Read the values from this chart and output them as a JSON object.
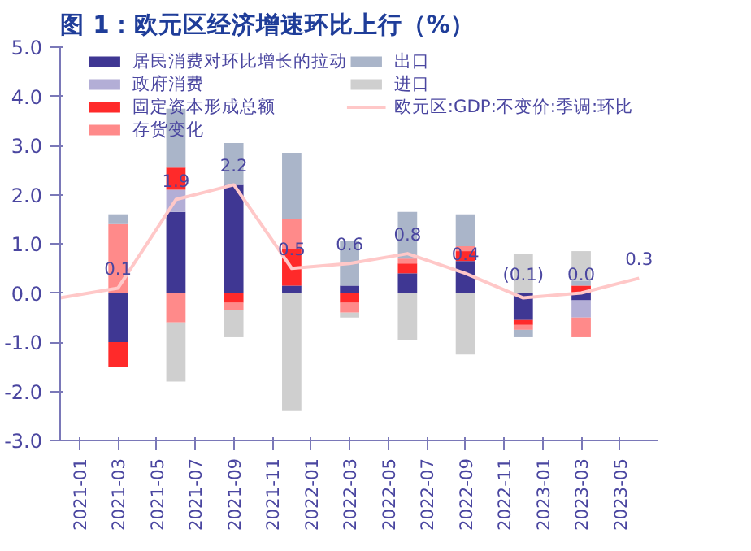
{
  "chart_data": {
    "type": "bar",
    "title": "图 1：欧元区经济增速环比上行（%）",
    "stacked": true,
    "x": [
      "2021-03",
      "2021-06",
      "2021-09",
      "2021-12",
      "2022-03",
      "2022-06",
      "2022-09",
      "2022-12",
      "2023-03"
    ],
    "series": [
      {
        "name": "居民消费对环比增长的拉动",
        "color": "#3f3793",
        "values": [
          -1.0,
          1.65,
          2.2,
          0.15,
          0.15,
          0.4,
          0.65,
          -0.55,
          -0.15
        ]
      },
      {
        "name": "政府消费",
        "color": "#b3aed6",
        "values": [
          0,
          0.45,
          0,
          null,
          0,
          0,
          0,
          0,
          -0.35
        ]
      },
      {
        "name": "固定资本形成总额",
        "color": "#ff2a2a",
        "values": [
          -0.5,
          0.45,
          -0.2,
          0.75,
          -0.2,
          0.2,
          0.2,
          -0.1,
          0.15
        ]
      },
      {
        "name": "存货变化",
        "color": "#ff8a8a",
        "values": [
          1.4,
          -0.6,
          -0.15,
          0.6,
          -0.2,
          0.1,
          0.1,
          -0.1,
          -0.4
        ]
      },
      {
        "name": "出口",
        "color": "#aab5c9",
        "values": [
          0.2,
          1.2,
          0.85,
          1.35,
          0.9,
          0.95,
          0.65,
          -0.15,
          0.1
        ]
      },
      {
        "name": "进口",
        "color": "#cfcfcf",
        "values": [
          0,
          -1.2,
          -0.55,
          -2.4,
          -0.1,
          -0.95,
          -1.25,
          0.8,
          0.6
        ]
      },
      {
        "name": "欧元区:GDP:不变价:季调:环比",
        "type": "line",
        "color": "#ffc8c8",
        "x": [
          "2020-12",
          "2021-03",
          "2021-06",
          "2021-09",
          "2021-12",
          "2022-03",
          "2022-06",
          "2022-09",
          "2022-12",
          "2023-03",
          "2023-06"
        ],
        "values": [
          -0.1,
          0.1,
          1.9,
          2.2,
          0.5,
          0.6,
          0.8,
          0.4,
          -0.1,
          0.0,
          0.3
        ],
        "value_labels": [
          null,
          "0.1",
          "1.9",
          "2.2",
          "0.5",
          "0.6",
          "0.8",
          "0.4",
          "(0.1)",
          "0.0",
          "0.3"
        ]
      }
    ],
    "xlim": [
      "2020-12",
      "2023-07"
    ],
    "xticks": [
      "2021-01",
      "2021-03",
      "2021-05",
      "2021-07",
      "2021-09",
      "2021-11",
      "2022-01",
      "2022-03",
      "2022-05",
      "2022-07",
      "2022-09",
      "2022-11",
      "2023-01",
      "2023-03",
      "2023-05"
    ],
    "ylim": [
      -3,
      5
    ],
    "yticks": [
      {
        "value": -3,
        "label": "-3.0"
      },
      {
        "value": -2,
        "label": "-2.0"
      },
      {
        "value": -1,
        "label": "-1.0"
      },
      {
        "value": 0,
        "label": "0.0"
      },
      {
        "value": 1,
        "label": "1.0"
      },
      {
        "value": 2,
        "label": "2.0"
      },
      {
        "value": 3,
        "label": "3.0"
      },
      {
        "value": 4,
        "label": "4.0"
      },
      {
        "value": 5,
        "label": "5.0"
      }
    ],
    "grid": false,
    "legend": "top"
  }
}
